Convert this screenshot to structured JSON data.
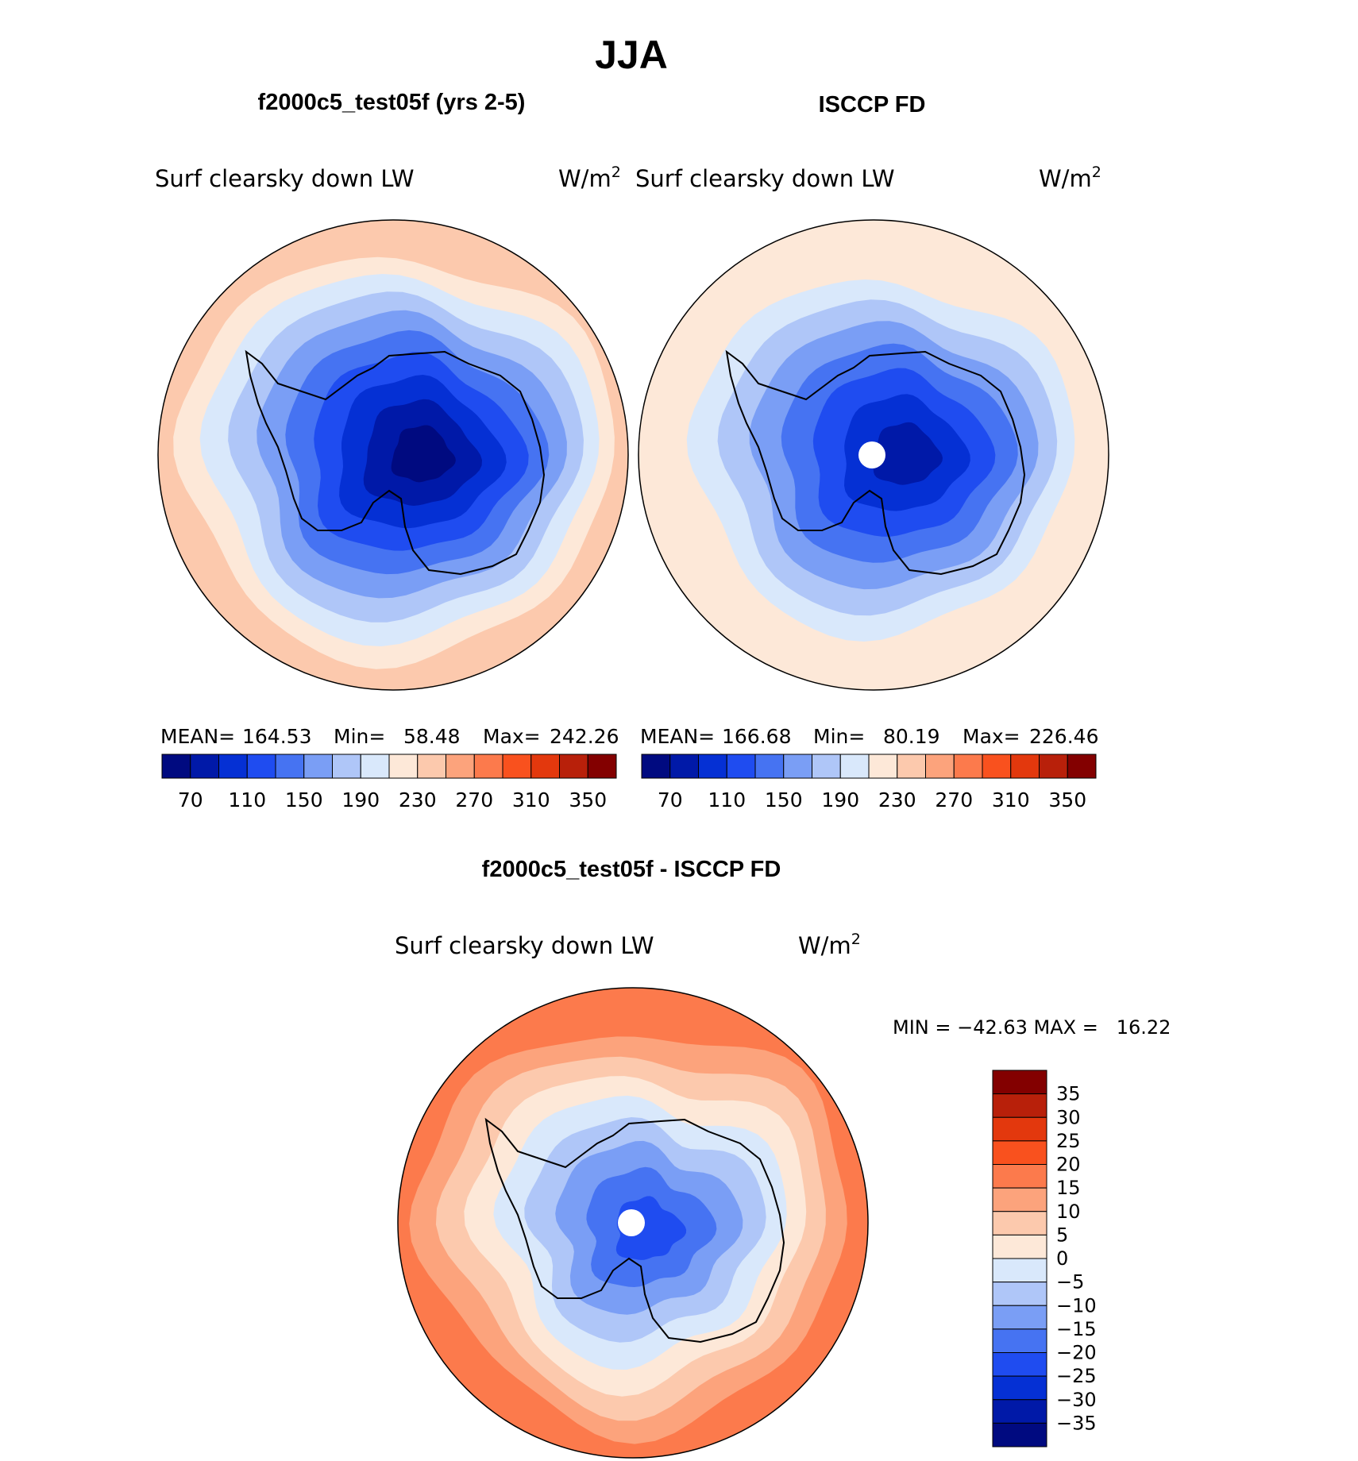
{
  "title": "JJA",
  "panels": [
    {
      "heading": "f2000c5_test05f (yrs 2-5)",
      "variable": "Surf clearsky down LW",
      "units": "W/m",
      "units_sup": "2",
      "mean_label": "MEAN=",
      "mean": "164.53",
      "min_label": "Min=",
      "min": "58.48",
      "max_label": "Max=",
      "max": "242.26"
    },
    {
      "heading": "ISCCP FD",
      "variable": "Surf clearsky down LW",
      "units": "W/m",
      "units_sup": "2",
      "mean_label": "MEAN=",
      "mean": "166.68",
      "min_label": "Min=",
      "min": "80.19",
      "max_label": "Max=",
      "max": "226.46"
    }
  ],
  "diff": {
    "heading": "f2000c5_test05f - ISCCP FD",
    "variable": "Surf clearsky down LW",
    "units": "W/m",
    "units_sup": "2",
    "minmax": "MIN = −42.63 MAX =   16.22"
  },
  "chart_data": [
    {
      "type": "heatmap",
      "projection": "south-polar-stereographic",
      "title": "f2000c5_test05f (yrs 2-5)",
      "colorbar_ticks": [
        70,
        110,
        150,
        190,
        230,
        270,
        310,
        350
      ],
      "levels": [
        60,
        70,
        90,
        110,
        130,
        150,
        170,
        190,
        210,
        230,
        250,
        270,
        290,
        310,
        330,
        350
      ],
      "field_rings_inner_to_outer": [
        58,
        70,
        95,
        120,
        145,
        165,
        185,
        205,
        222,
        242
      ]
    },
    {
      "type": "heatmap",
      "projection": "south-polar-stereographic",
      "title": "ISCCP FD",
      "colorbar_ticks": [
        70,
        110,
        150,
        190,
        230,
        270,
        310,
        350
      ],
      "levels": [
        60,
        70,
        90,
        110,
        130,
        150,
        170,
        190,
        210,
        230,
        250,
        270,
        290,
        310,
        330,
        350
      ],
      "field_rings_inner_to_outer": [
        80,
        100,
        120,
        140,
        160,
        180,
        200,
        215,
        226
      ]
    },
    {
      "type": "heatmap",
      "projection": "south-polar-stereographic",
      "title": "f2000c5_test05f - ISCCP FD",
      "colorbar_ticks": [
        "35",
        "30",
        "25",
        "20",
        "15",
        "10",
        "5",
        "0",
        "−5",
        "−10",
        "−15",
        "−20",
        "−25",
        "−30",
        "−35"
      ],
      "field_rings_inner_to_outer": [
        -25,
        -20,
        -15,
        -10,
        -5,
        0,
        5,
        10,
        15
      ]
    }
  ],
  "colors": {
    "seq": [
      "#000a80",
      "#0019a8",
      "#0530d4",
      "#1f4cf0",
      "#4673f2",
      "#7a9ef5",
      "#afc6f8",
      "#d9e8fb",
      "#fde8d8",
      "#fcc9ad",
      "#fca37c",
      "#fc7a4c",
      "#f9511e",
      "#e3380d",
      "#b8200a",
      "#830000"
    ],
    "diff": [
      "#830000",
      "#b8200a",
      "#e3380d",
      "#f9511e",
      "#fc7a4c",
      "#fca37c",
      "#fcc9ad",
      "#fde8d8",
      "#d9e8fb",
      "#afc6f8",
      "#7a9ef5",
      "#4673f2",
      "#1f4cf0",
      "#0530d4",
      "#0019a8",
      "#000a80"
    ]
  }
}
